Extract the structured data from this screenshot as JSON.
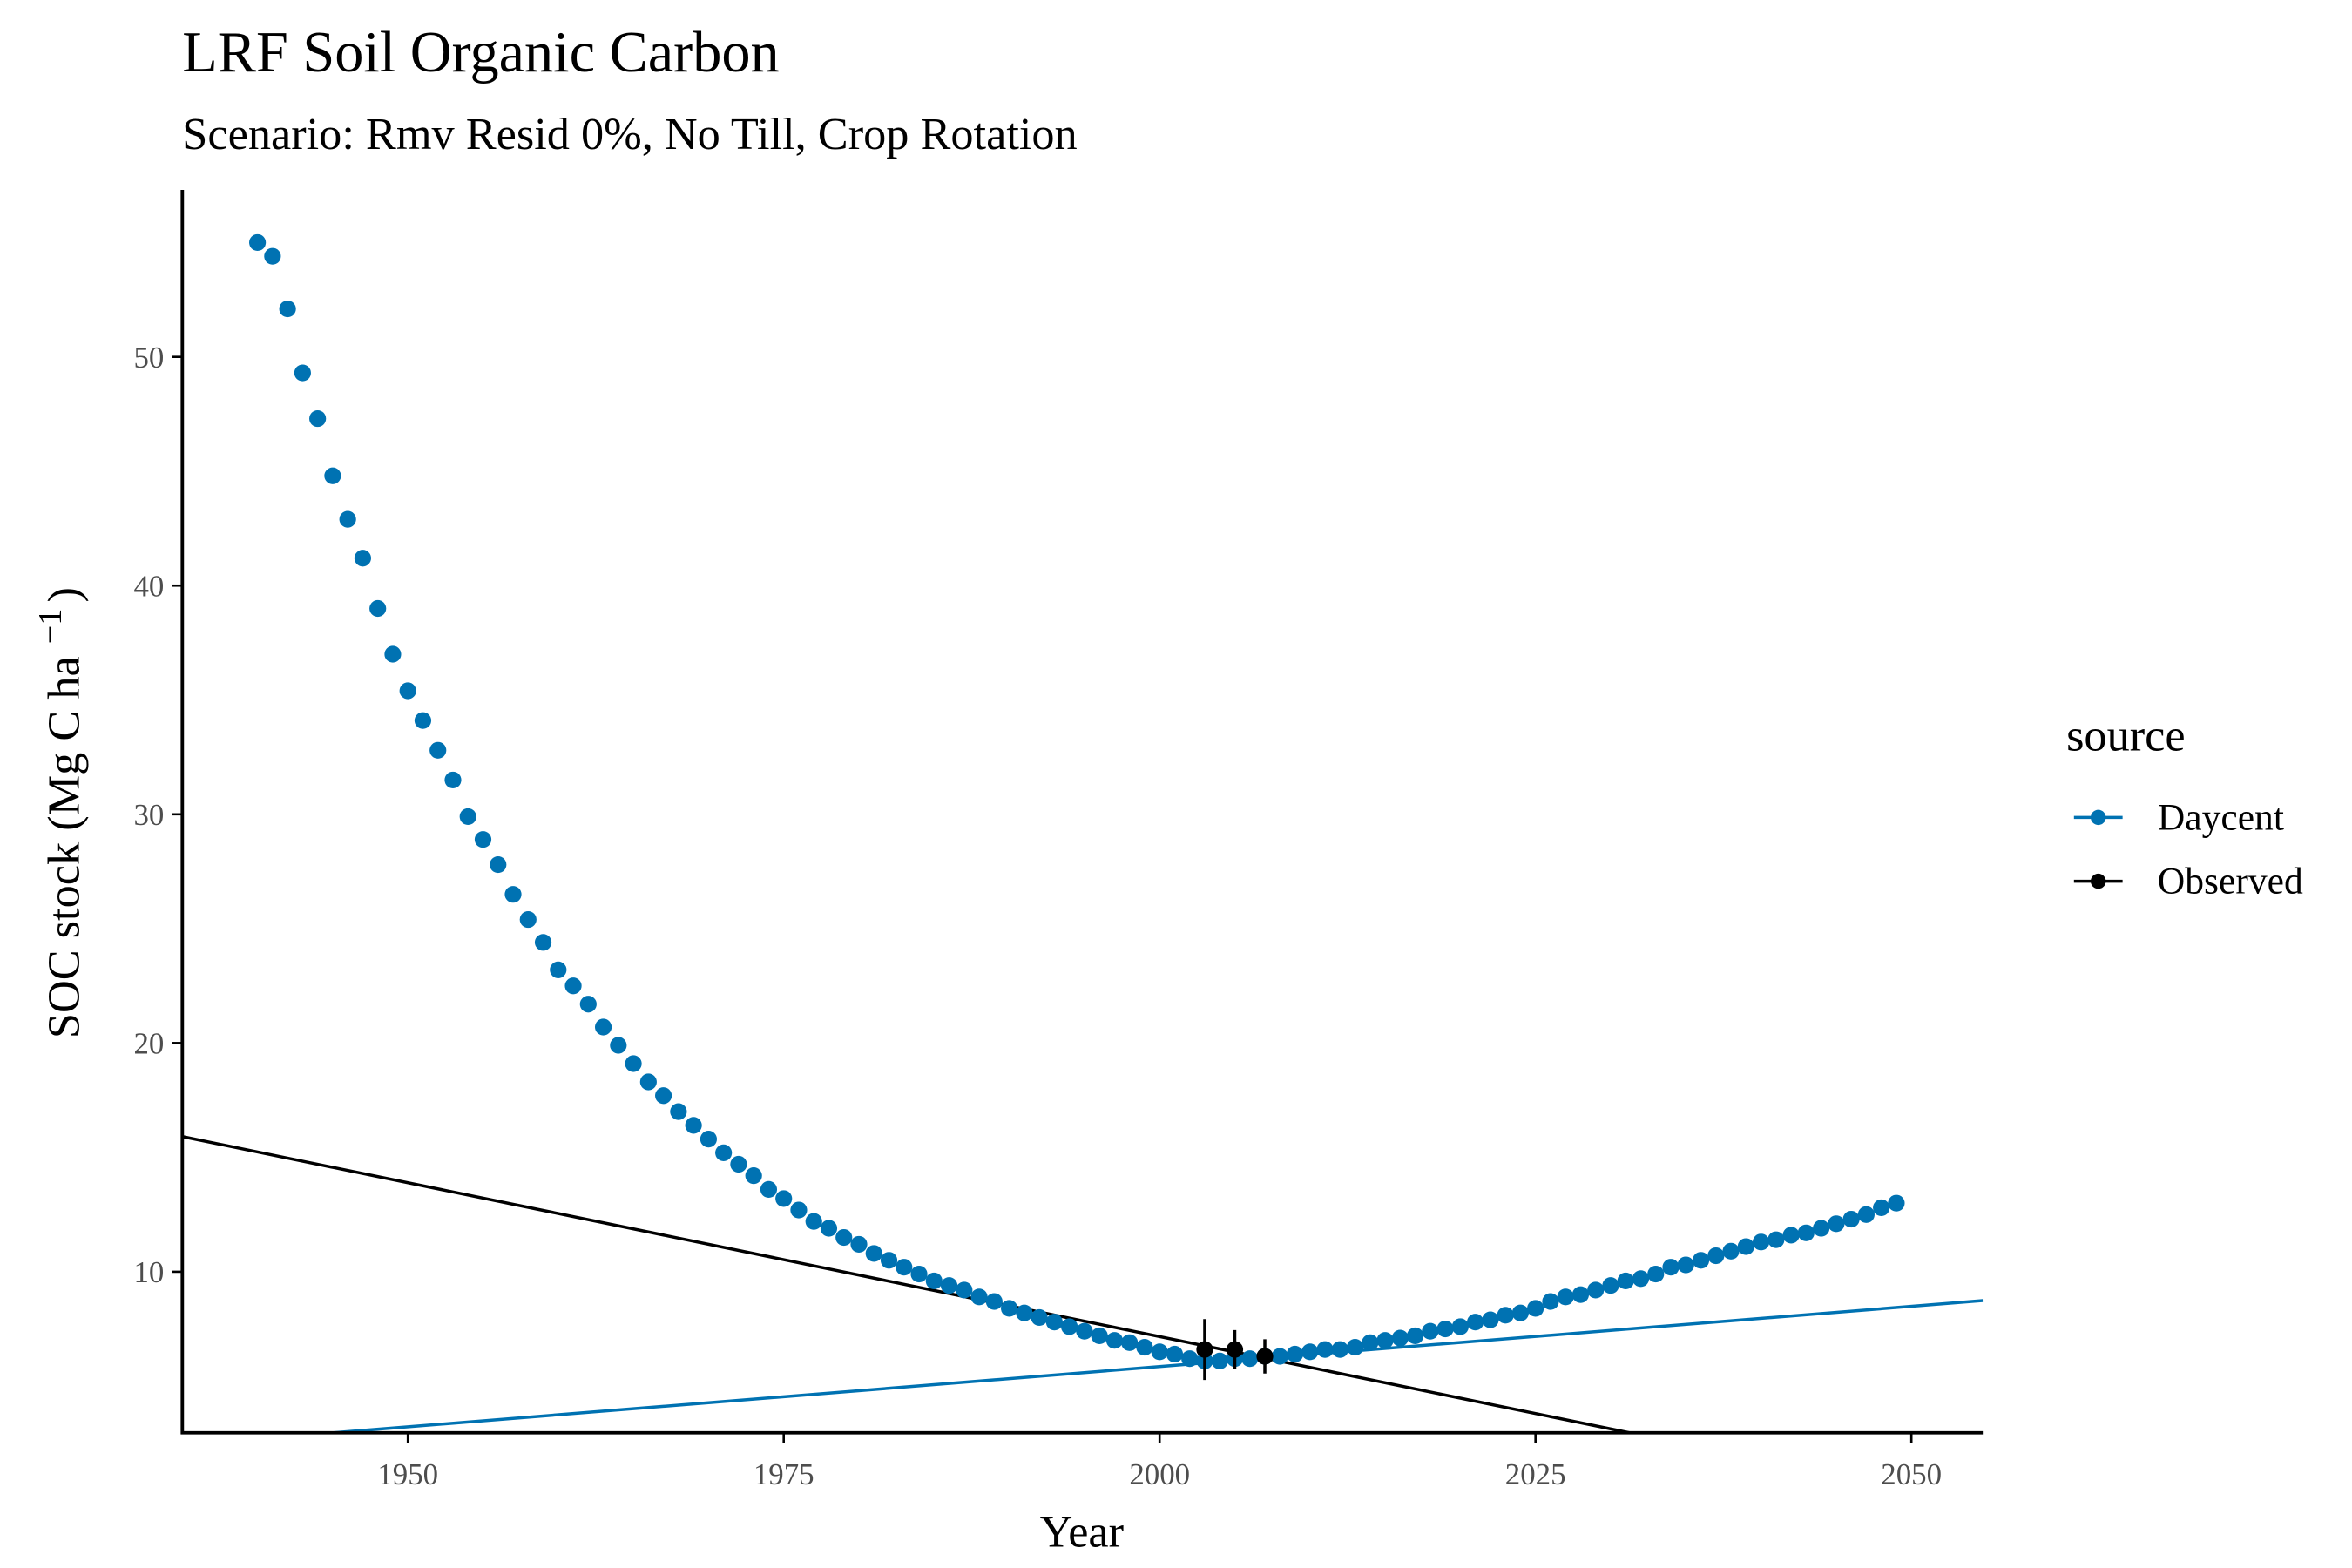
{
  "chart_data": {
    "type": "scatter",
    "title": "LRF Soil Organic Carbon",
    "subtitle": "Scenario: Rmv Resid 0%, No Till, Crop Rotation",
    "x_label": "Year",
    "y_label": {
      "text": "SOC stock (Mg C ha",
      "superscript": "−1",
      "close": ")"
    },
    "legend_title": "source",
    "legend_position": "right",
    "grid": false,
    "xlim": [
      1935,
      2054.75
    ],
    "ylim": [
      2.96,
      57.3
    ],
    "xticks": [
      1950,
      1975,
      2000,
      2025,
      2050
    ],
    "yticks": [
      10,
      20,
      30,
      40,
      50
    ],
    "series": [
      {
        "name": "Daycent",
        "color": "#0072B2",
        "x": [
          1940,
          1941,
          1942,
          1943,
          1944,
          1945,
          1946,
          1947,
          1948,
          1949,
          1950,
          1951,
          1952,
          1953,
          1954,
          1955,
          1956,
          1957,
          1958,
          1959,
          1960,
          1961,
          1962,
          1963,
          1964,
          1965,
          1966,
          1967,
          1968,
          1969,
          1970,
          1971,
          1972,
          1973,
          1974,
          1975,
          1976,
          1977,
          1978,
          1979,
          1980,
          1981,
          1982,
          1983,
          1984,
          1985,
          1986,
          1987,
          1988,
          1989,
          1990,
          1991,
          1992,
          1993,
          1994,
          1995,
          1996,
          1997,
          1998,
          1999,
          2000,
          2001,
          2002,
          2003,
          2004,
          2005,
          2006,
          2007,
          2008,
          2009,
          2010,
          2011,
          2012,
          2013,
          2014,
          2015,
          2016,
          2017,
          2018,
          2019,
          2020,
          2021,
          2022,
          2023,
          2024,
          2025,
          2026,
          2027,
          2028,
          2029,
          2030,
          2031,
          2032,
          2033,
          2034,
          2035,
          2036,
          2037,
          2038,
          2039,
          2040,
          2041,
          2042,
          2043,
          2044,
          2045,
          2046,
          2047,
          2048,
          2049
        ],
        "values": [
          55.0,
          54.4,
          52.1,
          49.3,
          47.3,
          44.8,
          42.9,
          41.2,
          39.0,
          37.0,
          35.4,
          34.1,
          32.8,
          31.5,
          29.9,
          28.9,
          27.8,
          26.5,
          25.4,
          24.4,
          23.2,
          22.5,
          21.7,
          20.7,
          19.9,
          19.1,
          18.3,
          17.7,
          17.0,
          16.4,
          15.8,
          15.2,
          14.7,
          14.2,
          13.6,
          13.2,
          12.7,
          12.2,
          11.9,
          11.5,
          11.2,
          10.8,
          10.5,
          10.2,
          9.9,
          9.6,
          9.4,
          9.2,
          8.9,
          8.7,
          8.4,
          8.2,
          8.0,
          7.8,
          7.6,
          7.4,
          7.2,
          7.0,
          6.9,
          6.7,
          6.5,
          6.4,
          6.2,
          6.1,
          6.1,
          6.2,
          6.2,
          6.3,
          6.3,
          6.4,
          6.5,
          6.6,
          6.6,
          6.7,
          6.9,
          7.0,
          7.1,
          7.2,
          7.4,
          7.5,
          7.6,
          7.8,
          7.9,
          8.1,
          8.2,
          8.4,
          8.7,
          8.9,
          9.0,
          9.2,
          9.4,
          9.6,
          9.7,
          9.9,
          10.2,
          10.3,
          10.5,
          10.7,
          10.9,
          11.1,
          11.3,
          11.4,
          11.6,
          11.7,
          11.9,
          12.1,
          12.3,
          12.5,
          12.8,
          13.0
        ]
      },
      {
        "name": "Observed",
        "color": "#000000",
        "x": [
          2003,
          2005,
          2007
        ],
        "values": [
          6.6,
          6.6,
          6.3
        ],
        "errors": [
          1.33,
          0.85,
          0.75
        ]
      }
    ],
    "trend_lines": [
      {
        "color": "#000000",
        "x": [
          1935,
          2054.75
        ],
        "values": [
          15.91,
          -0.2
        ]
      },
      {
        "color": "#0072B2",
        "x": [
          1935,
          2054.75
        ],
        "values": [
          2.43,
          8.74
        ]
      }
    ]
  }
}
